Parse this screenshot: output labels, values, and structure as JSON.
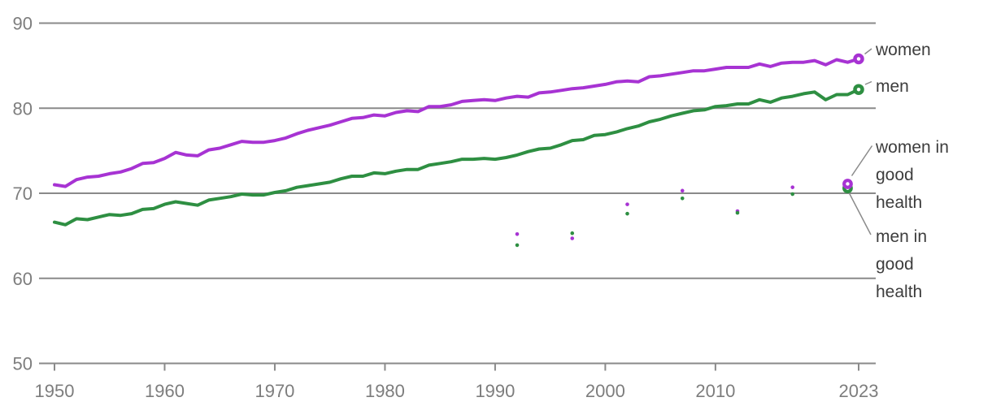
{
  "chart_data": {
    "type": "line",
    "title": "",
    "xlabel": "",
    "ylabel": "",
    "xlim": [
      1950,
      2023
    ],
    "ylim": [
      50,
      90
    ],
    "grid": "horizontal",
    "legend_position": "right-annotations",
    "xticks": {
      "values": [
        1950,
        1960,
        1970,
        1980,
        1990,
        2000,
        2010,
        2023
      ],
      "labels": [
        "1950",
        "1960",
        "1970",
        "1980",
        "1990",
        "2000",
        "2010",
        "2023"
      ]
    },
    "yticks": {
      "values": [
        50,
        60,
        70,
        80,
        90
      ],
      "labels": [
        "50",
        "60",
        "70",
        "80",
        "90"
      ]
    },
    "years": [
      1950,
      1951,
      1952,
      1953,
      1954,
      1955,
      1956,
      1957,
      1958,
      1959,
      1960,
      1961,
      1962,
      1963,
      1964,
      1965,
      1966,
      1967,
      1968,
      1969,
      1970,
      1971,
      1972,
      1973,
      1974,
      1975,
      1976,
      1977,
      1978,
      1979,
      1980,
      1981,
      1982,
      1983,
      1984,
      1985,
      1986,
      1987,
      1988,
      1989,
      1990,
      1991,
      1992,
      1993,
      1994,
      1995,
      1996,
      1997,
      1998,
      1999,
      2000,
      2001,
      2002,
      2003,
      2004,
      2005,
      2006,
      2007,
      2008,
      2009,
      2010,
      2011,
      2012,
      2013,
      2014,
      2015,
      2016,
      2017,
      2018,
      2019,
      2020,
      2021,
      2022,
      2023
    ],
    "series": [
      {
        "name": "women",
        "color": "#a733d3",
        "values": [
          71.0,
          70.8,
          71.6,
          71.9,
          72.0,
          72.3,
          72.5,
          72.9,
          73.5,
          73.6,
          74.1,
          74.8,
          74.5,
          74.4,
          75.1,
          75.3,
          75.7,
          76.1,
          76.0,
          76.0,
          76.2,
          76.5,
          77.0,
          77.4,
          77.7,
          78.0,
          78.4,
          78.8,
          78.9,
          79.2,
          79.1,
          79.5,
          79.7,
          79.6,
          80.2,
          80.2,
          80.4,
          80.8,
          80.9,
          81.0,
          80.9,
          81.2,
          81.4,
          81.3,
          81.8,
          81.9,
          82.1,
          82.3,
          82.4,
          82.6,
          82.8,
          83.1,
          83.2,
          83.1,
          83.7,
          83.8,
          84.0,
          84.2,
          84.4,
          84.4,
          84.6,
          84.8,
          84.8,
          84.8,
          85.2,
          84.9,
          85.3,
          85.4,
          85.4,
          85.6,
          85.1,
          85.7,
          85.4,
          85.8
        ]
      },
      {
        "name": "men",
        "color": "#2e8f42",
        "values": [
          66.6,
          66.3,
          67.0,
          66.9,
          67.2,
          67.5,
          67.4,
          67.6,
          68.1,
          68.2,
          68.7,
          69.0,
          68.8,
          68.6,
          69.2,
          69.4,
          69.6,
          69.9,
          69.8,
          69.8,
          70.1,
          70.3,
          70.7,
          70.9,
          71.1,
          71.3,
          71.7,
          72.0,
          72.0,
          72.4,
          72.3,
          72.6,
          72.8,
          72.8,
          73.3,
          73.5,
          73.7,
          74.0,
          74.0,
          74.1,
          74.0,
          74.2,
          74.5,
          74.9,
          75.2,
          75.3,
          75.7,
          76.2,
          76.3,
          76.8,
          76.9,
          77.2,
          77.6,
          77.9,
          78.4,
          78.7,
          79.1,
          79.4,
          79.7,
          79.8,
          80.2,
          80.3,
          80.5,
          80.5,
          81.0,
          80.7,
          81.2,
          81.4,
          81.7,
          81.9,
          81.0,
          81.6,
          81.6,
          82.2
        ]
      }
    ],
    "scatter_series": [
      {
        "name": "women in good health",
        "color": "#a733d3",
        "x": [
          1992,
          1997,
          2002,
          2007,
          2012,
          2017,
          2022
        ],
        "values": [
          65.2,
          64.7,
          68.7,
          70.3,
          67.9,
          70.7,
          71.1
        ]
      },
      {
        "name": "men in good health",
        "color": "#2e8f42",
        "x": [
          1992,
          1997,
          2002,
          2007,
          2012,
          2017,
          2022
        ],
        "values": [
          63.9,
          65.3,
          67.6,
          69.4,
          67.7,
          69.9,
          70.6
        ]
      }
    ]
  },
  "annotations": {
    "women": {
      "text": "women"
    },
    "men": {
      "text": "men"
    },
    "women_good_health": {
      "lines": [
        "women in",
        "good",
        "health"
      ]
    },
    "men_good_health": {
      "lines": [
        "men in",
        "good",
        "health"
      ]
    }
  },
  "colors": {
    "women": "#a733d3",
    "men": "#2e8f42",
    "gridline": "#8a8a8a",
    "tick_text": "#7d7d7d",
    "annotation_text": "#3d3d3d",
    "leader_line": "#8a8a8a",
    "background": "#ffffff"
  }
}
